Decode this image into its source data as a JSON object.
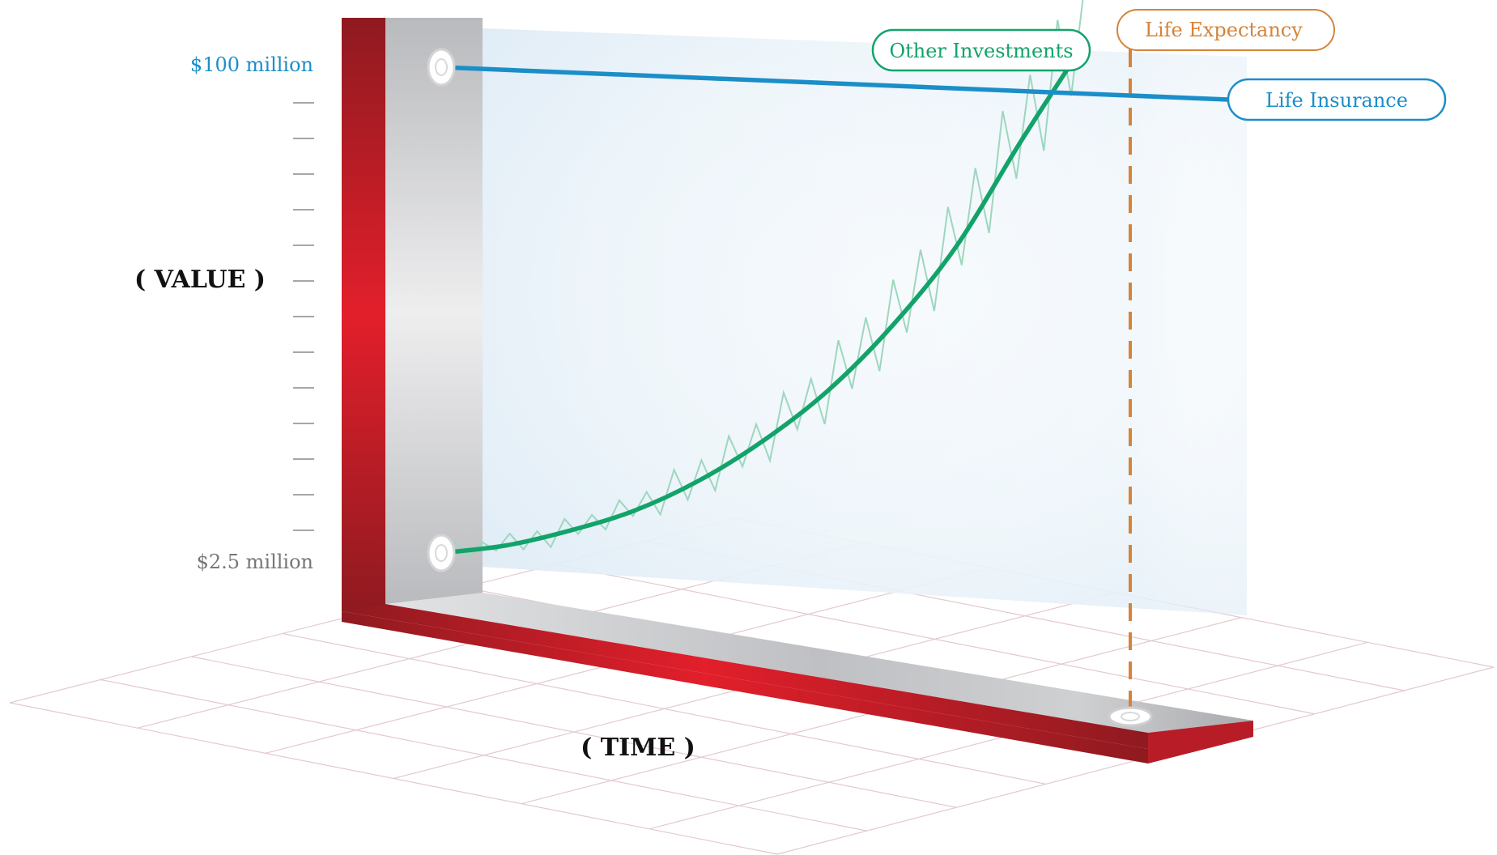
{
  "chart_data": {
    "type": "line",
    "title": "",
    "xlabel": "( TIME )",
    "ylabel": "( VALUE )",
    "y_tick_top": "$100 million",
    "y_tick_bottom": "$2.5 million",
    "ylim": [
      2.5,
      100
    ],
    "grid": true,
    "legend": "inline labels",
    "series": [
      {
        "name": "Life Insurance",
        "color": "#1b8ec9",
        "x": [
          0,
          1
        ],
        "y": [
          100,
          95
        ]
      },
      {
        "name": "Other Investments",
        "color": "#13a36a",
        "x": [
          0,
          0.1,
          0.2,
          0.3,
          0.4,
          0.5,
          0.6,
          0.7,
          0.8,
          0.9,
          1.0
        ],
        "y": [
          2.5,
          4,
          7,
          11,
          17,
          25,
          35,
          48,
          64,
          85,
          105
        ]
      }
    ],
    "annotations": [
      {
        "label": "Life Expectancy",
        "type": "vertical-dashed",
        "color": "#d5843a"
      }
    ]
  },
  "colors": {
    "insurance": "#1b8ec9",
    "investments": "#13a36a",
    "investments_light": "#9dd7bd",
    "expectancy": "#d5843a",
    "bar_red": "#c8202a",
    "bar_gray": "#c6c7ca",
    "tick_bottom": "#777777"
  }
}
